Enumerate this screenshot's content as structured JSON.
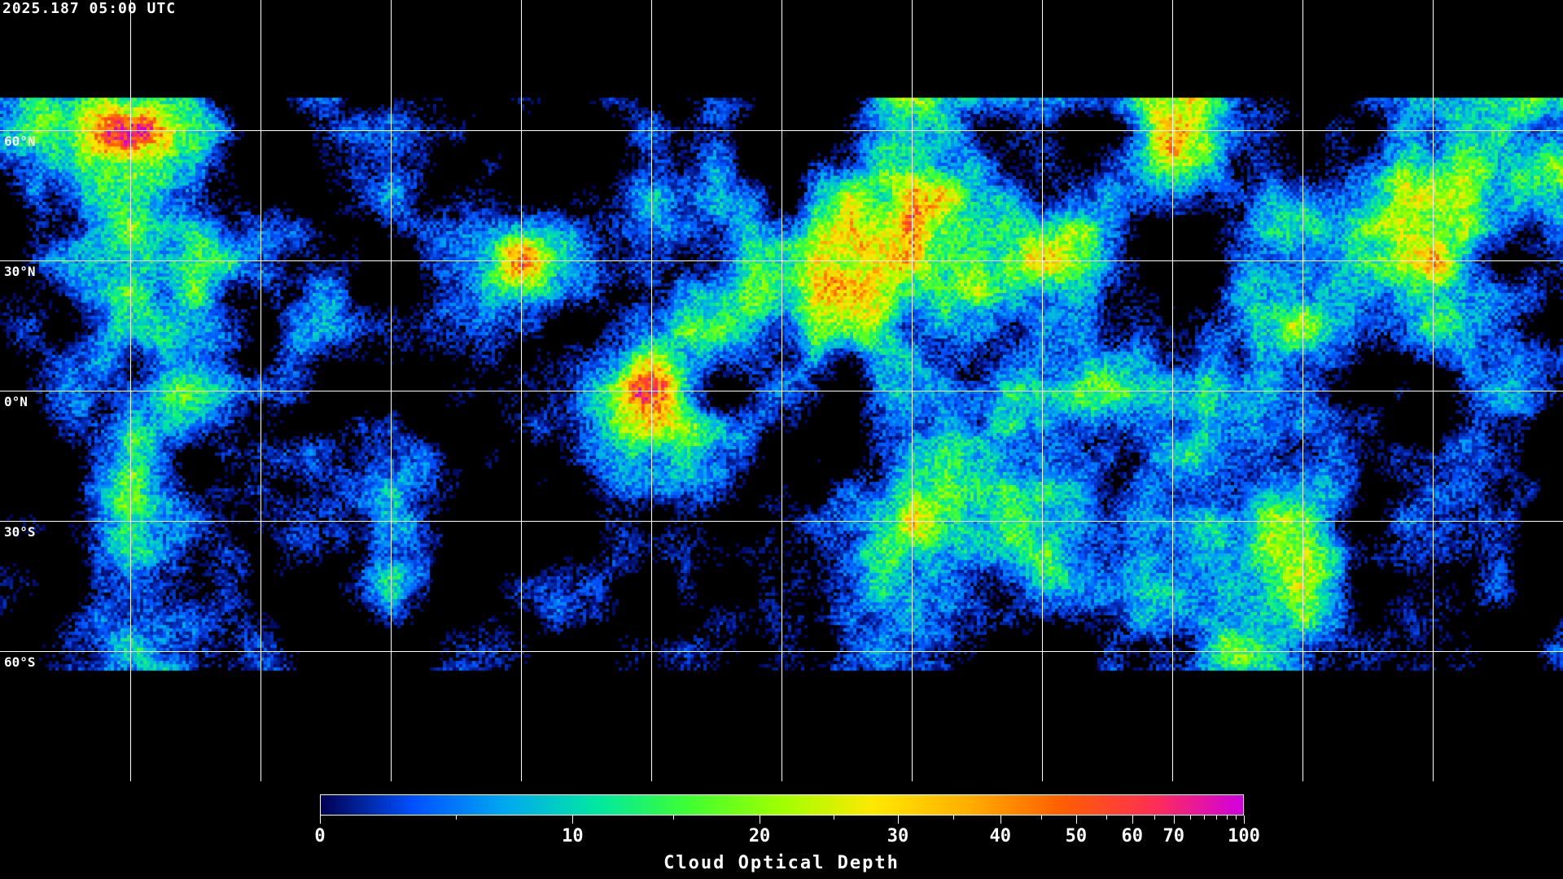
{
  "timestamp": "2025.187 05:00 UTC",
  "map": {
    "projection": "equirectangular",
    "gridlines_deg": 30,
    "lat_labels": [
      "60°N",
      "30°N",
      "0°N",
      "30°S",
      "60°S"
    ],
    "coastlines_color": "#ffffff"
  },
  "colorbar": {
    "title": "Cloud Optical Depth",
    "min": 0,
    "max": 100,
    "tick_labels": [
      "0",
      "10",
      "20",
      "30",
      "40",
      "50",
      "60",
      "70",
      "100"
    ],
    "tick_values": [
      0,
      10,
      20,
      30,
      40,
      50,
      60,
      70,
      100
    ],
    "minor_tick_values": [
      5,
      15,
      25,
      35,
      45,
      55,
      65,
      75,
      80,
      85,
      90,
      95
    ],
    "colors": [
      "#000050",
      "#0050ff",
      "#00a8f0",
      "#00e8a0",
      "#40ff30",
      "#a0ff00",
      "#ffe800",
      "#ffb000",
      "#ff6000",
      "#ff3050",
      "#d000e0"
    ]
  }
}
